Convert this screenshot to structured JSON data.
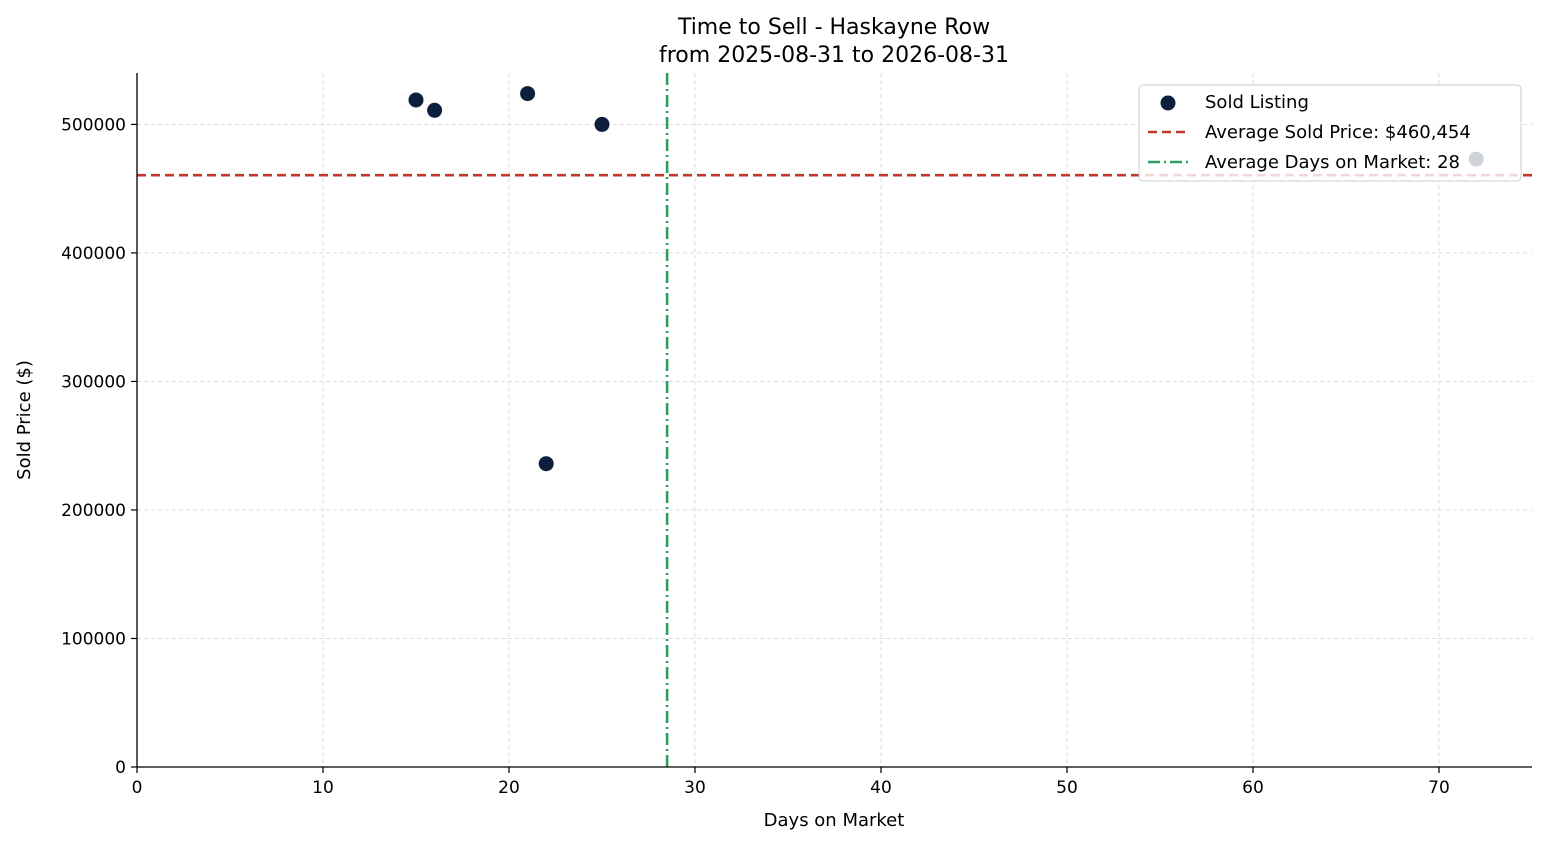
{
  "chart_data": {
    "type": "scatter",
    "title": "Time to Sell - Haskayne Row",
    "subtitle": "from 2025-08-31 to 2026-08-31",
    "xlabel": "Days on Market",
    "ylabel": "Sold Price ($)",
    "xlim": [
      0,
      75
    ],
    "ylim": [
      0,
      540000
    ],
    "xticks": [
      0,
      10,
      20,
      30,
      40,
      50,
      60,
      70
    ],
    "yticks": [
      0,
      100000,
      200000,
      300000,
      400000,
      500000
    ],
    "grid": true,
    "legend_position": "top-right",
    "series": [
      {
        "name": "Sold Listing",
        "color": "#0d1f3c",
        "points": [
          {
            "x": 15,
            "y": 519000
          },
          {
            "x": 16,
            "y": 511000
          },
          {
            "x": 21,
            "y": 524000
          },
          {
            "x": 25,
            "y": 500000
          },
          {
            "x": 22,
            "y": 236000
          },
          {
            "x": 72,
            "y": 473000
          }
        ]
      }
    ],
    "reference_lines": [
      {
        "name": "Average Sold Price: $460,454",
        "orientation": "horizontal",
        "value": 460454,
        "color": "#c0392b",
        "style": "dashed"
      },
      {
        "name": "Average Days on Market: 28",
        "orientation": "vertical",
        "value": 28.5,
        "color": "#2e9e5e",
        "style": "dashdot"
      }
    ]
  }
}
